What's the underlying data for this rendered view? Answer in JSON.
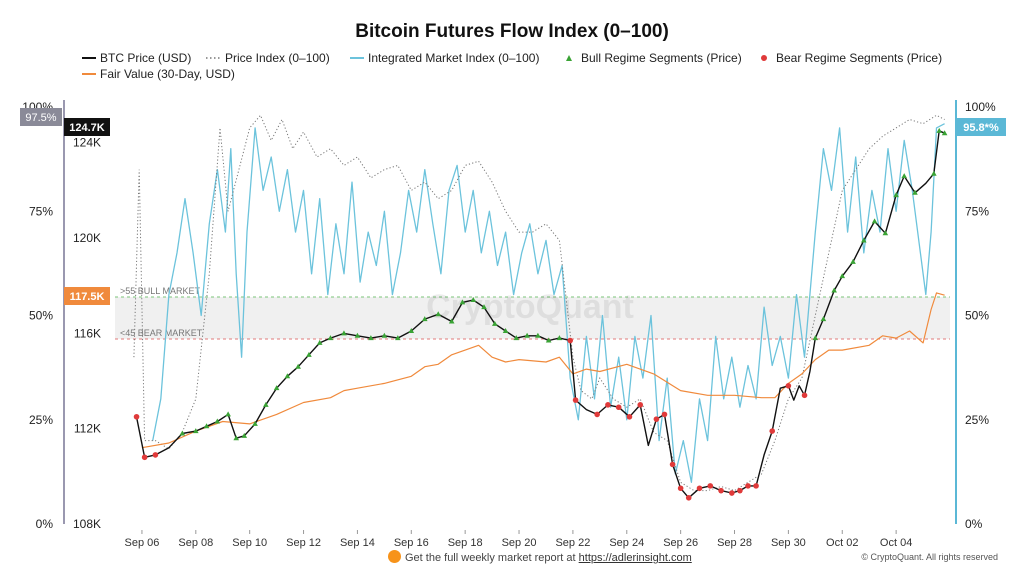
{
  "title": "Bitcoin Futures Flow Index (0–100)",
  "legend": {
    "btc_price": "BTC Price (USD)",
    "price_index": "Price Index (0–100)",
    "integrated_index": "Integrated Market Index (0–100)",
    "bull_segments": "Bull Regime Segments (Price)",
    "bear_segments": "Bear Regime Segments (Price)",
    "fair_value": "Fair Value (30-Day, USD)"
  },
  "colors": {
    "btc_price": "#111111",
    "price_index": "#777777",
    "integrated_index": "#6cc3dc",
    "bull": "#3aa335",
    "bear": "#e03a3a",
    "fair_value": "#f08a3c",
    "overlap": "#b48fc6",
    "left_axis_bar": "#9a98b0",
    "right_axis_bar": "#5bb8d6",
    "bull_line": "#7bc47a",
    "bear_line": "#e07a7a"
  },
  "watermark": "CryptoQuant",
  "badges": {
    "left_pct": "97.5%",
    "price_top": "124.7K",
    "price_mid": "117.5K",
    "right_pct": "95.8*%"
  },
  "zones": {
    "bull_label": ">55 BULL MARKET",
    "bear_label": "<45 BEAR MARKET"
  },
  "footer": {
    "prefix": "Get the full weekly market report at ",
    "link": "https://adlerinsight.com",
    "copyright": "© CryptoQuant. All rights reserved"
  },
  "chart_data": {
    "type": "line",
    "x_tick_labels": [
      "Sep 06",
      "Sep 08",
      "Sep 10",
      "Sep 12",
      "Sep 14",
      "Sep 16",
      "Sep 18",
      "Sep 20",
      "Sep 22",
      "Sep 24",
      "Sep 26",
      "Sep 28",
      "Sep 30",
      "Oct 02",
      "Oct 04"
    ],
    "left_pct_ticks": [
      "0%",
      "25%",
      "50%",
      "75%",
      "100%"
    ],
    "left_price_ticks": [
      "108K",
      "112K",
      "116K",
      "120K",
      "124K"
    ],
    "right_pct_ticks": [
      "0%",
      "25%",
      "50%",
      "75%",
      "100%"
    ],
    "price_ylim": [
      108000,
      125500
    ],
    "index_ylim": [
      0,
      100
    ],
    "thresholds": {
      "bull": 55,
      "bear": 45
    },
    "btc_price_usd": [
      [
        5.8,
        112.5
      ],
      [
        6.1,
        110.8
      ],
      [
        6.5,
        110.9
      ],
      [
        7.0,
        111.2
      ],
      [
        7.5,
        111.8
      ],
      [
        8.0,
        111.9
      ],
      [
        8.4,
        112.1
      ],
      [
        8.8,
        112.3
      ],
      [
        9.2,
        112.6
      ],
      [
        9.5,
        111.6
      ],
      [
        9.8,
        111.7
      ],
      [
        10.2,
        112.2
      ],
      [
        10.6,
        113.0
      ],
      [
        11.0,
        113.7
      ],
      [
        11.4,
        114.2
      ],
      [
        11.8,
        114.6
      ],
      [
        12.2,
        115.1
      ],
      [
        12.6,
        115.6
      ],
      [
        13.0,
        115.8
      ],
      [
        13.5,
        116.0
      ],
      [
        14.0,
        115.9
      ],
      [
        14.5,
        115.8
      ],
      [
        15.0,
        115.9
      ],
      [
        15.5,
        115.8
      ],
      [
        16.0,
        116.1
      ],
      [
        16.5,
        116.6
      ],
      [
        17.0,
        116.8
      ],
      [
        17.5,
        116.5
      ],
      [
        17.9,
        117.3
      ],
      [
        18.3,
        117.4
      ],
      [
        18.7,
        117.1
      ],
      [
        19.1,
        116.4
      ],
      [
        19.5,
        116.1
      ],
      [
        19.9,
        115.8
      ],
      [
        20.3,
        115.9
      ],
      [
        20.7,
        115.9
      ],
      [
        21.1,
        115.7
      ],
      [
        21.5,
        115.8
      ],
      [
        21.9,
        115.7
      ],
      [
        22.1,
        113.2
      ],
      [
        22.5,
        112.8
      ],
      [
        22.9,
        112.6
      ],
      [
        23.3,
        113.0
      ],
      [
        23.7,
        112.9
      ],
      [
        24.1,
        112.5
      ],
      [
        24.5,
        113.0
      ],
      [
        24.8,
        111.3
      ],
      [
        25.1,
        112.4
      ],
      [
        25.4,
        112.6
      ],
      [
        25.7,
        110.5
      ],
      [
        26.0,
        109.5
      ],
      [
        26.3,
        109.1
      ],
      [
        26.7,
        109.5
      ],
      [
        27.1,
        109.6
      ],
      [
        27.5,
        109.4
      ],
      [
        27.9,
        109.3
      ],
      [
        28.2,
        109.4
      ],
      [
        28.5,
        109.6
      ],
      [
        28.8,
        109.6
      ],
      [
        29.1,
        110.9
      ],
      [
        29.4,
        111.9
      ],
      [
        29.7,
        113.7
      ],
      [
        30.0,
        113.8
      ],
      [
        30.2,
        113.2
      ],
      [
        30.4,
        113.8
      ],
      [
        30.6,
        113.4
      ],
      [
        30.8,
        114.4
      ],
      [
        31.0,
        115.8
      ],
      [
        31.3,
        116.6
      ],
      [
        31.7,
        117.8
      ],
      [
        32.0,
        118.4
      ],
      [
        32.4,
        119.0
      ],
      [
        32.8,
        119.9
      ],
      [
        33.2,
        120.7
      ],
      [
        33.6,
        120.2
      ],
      [
        34.0,
        121.8
      ],
      [
        34.3,
        122.6
      ],
      [
        34.7,
        121.9
      ],
      [
        35.1,
        122.3
      ],
      [
        35.4,
        122.7
      ],
      [
        35.6,
        124.5
      ],
      [
        35.8,
        124.4
      ]
    ],
    "fair_value_usd": [
      [
        6.0,
        111.2
      ],
      [
        7.0,
        111.4
      ],
      [
        8.0,
        111.9
      ],
      [
        9.0,
        112.3
      ],
      [
        10.0,
        112.2
      ],
      [
        11.0,
        112.6
      ],
      [
        12.0,
        113.1
      ],
      [
        13.0,
        113.3
      ],
      [
        13.5,
        113.6
      ],
      [
        14.0,
        113.7
      ],
      [
        15.0,
        113.9
      ],
      [
        16.0,
        114.2
      ],
      [
        16.5,
        114.6
      ],
      [
        17.0,
        114.7
      ],
      [
        17.5,
        115.1
      ],
      [
        18.0,
        115.3
      ],
      [
        18.5,
        115.5
      ],
      [
        19.0,
        115.0
      ],
      [
        19.5,
        114.8
      ],
      [
        20.0,
        114.9
      ],
      [
        21.0,
        114.8
      ],
      [
        21.5,
        115.0
      ],
      [
        22.0,
        114.3
      ],
      [
        22.5,
        114.5
      ],
      [
        23.0,
        114.4
      ],
      [
        24.0,
        114.7
      ],
      [
        25.0,
        114.3
      ],
      [
        26.0,
        113.6
      ],
      [
        27.0,
        113.4
      ],
      [
        28.0,
        113.4
      ],
      [
        29.0,
        113.3
      ],
      [
        29.5,
        113.3
      ],
      [
        30.0,
        113.9
      ],
      [
        30.5,
        114.3
      ],
      [
        31.0,
        114.9
      ],
      [
        31.5,
        115.3
      ],
      [
        32.0,
        115.3
      ],
      [
        33.0,
        115.5
      ],
      [
        33.5,
        115.9
      ],
      [
        34.0,
        115.8
      ],
      [
        34.5,
        116.1
      ],
      [
        35.0,
        115.6
      ],
      [
        35.3,
        117.0
      ],
      [
        35.5,
        117.7
      ],
      [
        35.8,
        117.6
      ]
    ],
    "price_index_pct": [
      [
        5.7,
        40
      ],
      [
        5.9,
        85
      ],
      [
        6.1,
        20
      ],
      [
        6.5,
        20
      ],
      [
        7.0,
        18
      ],
      [
        7.5,
        22
      ],
      [
        8.0,
        30
      ],
      [
        8.5,
        60
      ],
      [
        8.9,
        95
      ],
      [
        9.2,
        75
      ],
      [
        9.6,
        85
      ],
      [
        10.0,
        95
      ],
      [
        10.4,
        98
      ],
      [
        10.8,
        92
      ],
      [
        11.2,
        97
      ],
      [
        11.6,
        90
      ],
      [
        12.0,
        94
      ],
      [
        12.5,
        88
      ],
      [
        13.0,
        90
      ],
      [
        13.5,
        86
      ],
      [
        14.0,
        88
      ],
      [
        14.5,
        83
      ],
      [
        15.0,
        85
      ],
      [
        15.5,
        86
      ],
      [
        16.0,
        80
      ],
      [
        16.5,
        82
      ],
      [
        17.0,
        78
      ],
      [
        17.5,
        80
      ],
      [
        18.0,
        86
      ],
      [
        18.5,
        87
      ],
      [
        19.0,
        82
      ],
      [
        19.5,
        75
      ],
      [
        20.0,
        70
      ],
      [
        20.5,
        70
      ],
      [
        21.0,
        72
      ],
      [
        21.5,
        68
      ],
      [
        22.0,
        40
      ],
      [
        22.3,
        32
      ],
      [
        22.7,
        30
      ],
      [
        23.0,
        35
      ],
      [
        23.5,
        30
      ],
      [
        24.0,
        28
      ],
      [
        24.5,
        30
      ],
      [
        25.0,
        22
      ],
      [
        25.5,
        20
      ],
      [
        26.0,
        10
      ],
      [
        26.5,
        8
      ],
      [
        27.0,
        8
      ],
      [
        27.5,
        9
      ],
      [
        28.0,
        8
      ],
      [
        28.5,
        10
      ],
      [
        29.0,
        12
      ],
      [
        29.5,
        20
      ],
      [
        30.0,
        30
      ],
      [
        30.5,
        35
      ],
      [
        31.0,
        50
      ],
      [
        31.5,
        65
      ],
      [
        32.0,
        80
      ],
      [
        32.5,
        85
      ],
      [
        33.0,
        90
      ],
      [
        33.5,
        93
      ],
      [
        34.0,
        95
      ],
      [
        34.5,
        97
      ],
      [
        35.0,
        96
      ],
      [
        35.5,
        98
      ],
      [
        35.8,
        97
      ]
    ],
    "integrated_index_pct": [
      [
        6.4,
        20
      ],
      [
        6.7,
        30
      ],
      [
        7.0,
        55
      ],
      [
        7.3,
        65
      ],
      [
        7.6,
        78
      ],
      [
        7.9,
        65
      ],
      [
        8.2,
        50
      ],
      [
        8.5,
        72
      ],
      [
        8.8,
        85
      ],
      [
        9.1,
        70
      ],
      [
        9.3,
        90
      ],
      [
        9.5,
        60
      ],
      [
        9.7,
        40
      ],
      [
        9.9,
        70
      ],
      [
        10.2,
        95
      ],
      [
        10.5,
        80
      ],
      [
        10.8,
        88
      ],
      [
        11.1,
        75
      ],
      [
        11.4,
        85
      ],
      [
        11.7,
        70
      ],
      [
        12.0,
        80
      ],
      [
        12.3,
        60
      ],
      [
        12.6,
        78
      ],
      [
        12.9,
        55
      ],
      [
        13.2,
        72
      ],
      [
        13.5,
        60
      ],
      [
        13.8,
        82
      ],
      [
        14.1,
        58
      ],
      [
        14.4,
        70
      ],
      [
        14.7,
        62
      ],
      [
        15.0,
        75
      ],
      [
        15.3,
        55
      ],
      [
        15.6,
        65
      ],
      [
        15.9,
        80
      ],
      [
        16.2,
        70
      ],
      [
        16.5,
        85
      ],
      [
        16.8,
        72
      ],
      [
        17.1,
        60
      ],
      [
        17.4,
        80
      ],
      [
        17.7,
        86
      ],
      [
        18.0,
        70
      ],
      [
        18.3,
        80
      ],
      [
        18.6,
        65
      ],
      [
        18.9,
        75
      ],
      [
        19.2,
        62
      ],
      [
        19.5,
        70
      ],
      [
        19.8,
        55
      ],
      [
        20.1,
        65
      ],
      [
        20.4,
        72
      ],
      [
        20.7,
        60
      ],
      [
        21.0,
        68
      ],
      [
        21.3,
        55
      ],
      [
        21.6,
        62
      ],
      [
        21.9,
        35
      ],
      [
        22.2,
        25
      ],
      [
        22.5,
        45
      ],
      [
        22.8,
        30
      ],
      [
        23.1,
        50
      ],
      [
        23.4,
        28
      ],
      [
        23.7,
        40
      ],
      [
        24.0,
        25
      ],
      [
        24.3,
        45
      ],
      [
        24.6,
        35
      ],
      [
        24.9,
        50
      ],
      [
        25.2,
        20
      ],
      [
        25.5,
        35
      ],
      [
        25.8,
        12
      ],
      [
        26.1,
        20
      ],
      [
        26.4,
        10
      ],
      [
        26.7,
        30
      ],
      [
        27.0,
        20
      ],
      [
        27.3,
        45
      ],
      [
        27.6,
        30
      ],
      [
        27.9,
        40
      ],
      [
        28.2,
        28
      ],
      [
        28.5,
        38
      ],
      [
        28.8,
        30
      ],
      [
        29.1,
        52
      ],
      [
        29.4,
        38
      ],
      [
        29.7,
        45
      ],
      [
        30.0,
        35
      ],
      [
        30.3,
        55
      ],
      [
        30.6,
        40
      ],
      [
        31.0,
        70
      ],
      [
        31.3,
        90
      ],
      [
        31.6,
        80
      ],
      [
        31.9,
        95
      ],
      [
        32.2,
        70
      ],
      [
        32.5,
        88
      ],
      [
        32.8,
        65
      ],
      [
        33.1,
        80
      ],
      [
        33.4,
        70
      ],
      [
        33.7,
        90
      ],
      [
        34.0,
        75
      ],
      [
        34.3,
        92
      ],
      [
        34.6,
        80
      ],
      [
        34.9,
        65
      ],
      [
        35.1,
        55
      ],
      [
        35.3,
        70
      ],
      [
        35.5,
        95
      ],
      [
        35.8,
        96
      ]
    ]
  }
}
